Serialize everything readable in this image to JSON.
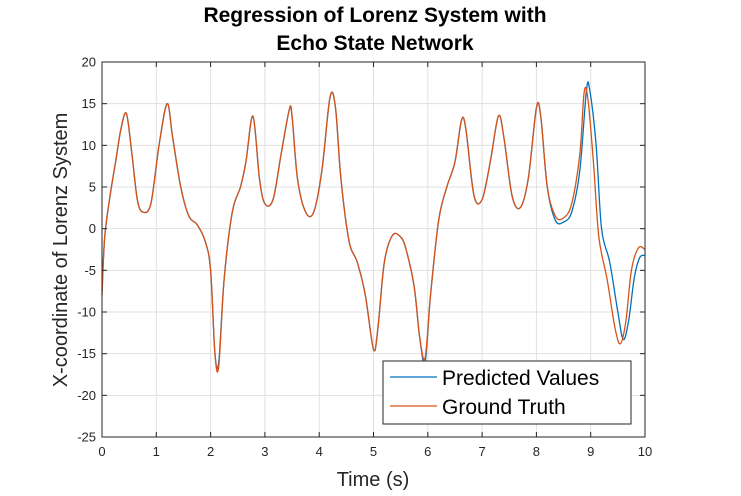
{
  "chart_data": {
    "type": "line",
    "title_lines": [
      "Regression of Lorenz System with",
      "Echo State Network"
    ],
    "xlabel": "Time (s)",
    "ylabel": "X-coordinate of Lorenz System",
    "xlim": [
      0,
      10
    ],
    "ylim": [
      -25,
      20
    ],
    "xticks": [
      0,
      1,
      2,
      3,
      4,
      5,
      6,
      7,
      8,
      9,
      10
    ],
    "yticks": [
      20,
      15,
      10,
      5,
      0,
      -5,
      -10,
      -15,
      -20,
      -25
    ],
    "grid": true,
    "legend_position": "bottom-right",
    "colors": {
      "predicted": "#0072BD",
      "ground": "#D95319"
    },
    "series": [
      {
        "name": "Predicted Values",
        "x": [
          0,
          0.05,
          0.15,
          0.25,
          0.35,
          0.45,
          0.55,
          0.65,
          0.75,
          0.9,
          1.05,
          1.2,
          1.3,
          1.45,
          1.6,
          1.75,
          1.9,
          2.0,
          2.08,
          2.15,
          2.25,
          2.4,
          2.55,
          2.65,
          2.78,
          2.9,
          3.0,
          3.15,
          3.3,
          3.45,
          3.5,
          3.6,
          3.75,
          3.9,
          4.05,
          4.2,
          4.3,
          4.4,
          4.55,
          4.7,
          4.85,
          5.0,
          5.08,
          5.2,
          5.35,
          5.5,
          5.6,
          5.75,
          5.85,
          5.95,
          6.05,
          6.2,
          6.35,
          6.5,
          6.62,
          6.7,
          6.85,
          7.0,
          7.15,
          7.3,
          7.4,
          7.55,
          7.7,
          7.85,
          8.0,
          8.08,
          8.2,
          8.35,
          8.5,
          8.65,
          8.8,
          8.92,
          8.98,
          9.1,
          9.2,
          9.35,
          9.5,
          9.6,
          9.7,
          9.8,
          9.9,
          10.0
        ],
        "y": [
          -7.5,
          -1,
          4,
          8,
          12,
          13.8,
          9,
          3.5,
          2,
          3,
          10,
          15,
          11,
          5,
          1.5,
          0.5,
          -1.5,
          -5,
          -15,
          -16,
          -6,
          2,
          5,
          8,
          13.5,
          6,
          3,
          3.5,
          9,
          14.3,
          13.5,
          6,
          2,
          2,
          7,
          15.8,
          14.5,
          6,
          -1.5,
          -4,
          -8,
          -14.5,
          -12,
          -4,
          -0.8,
          -1,
          -2.5,
          -7,
          -13,
          -16,
          -8,
          1,
          5,
          8,
          13,
          12,
          4,
          3.5,
          8,
          13.5,
          11,
          4,
          2.5,
          6,
          14.5,
          13.5,
          5,
          1,
          0.8,
          2,
          7,
          16.5,
          16.7,
          10,
          0,
          -4,
          -10,
          -13.3,
          -11,
          -6,
          -3.5,
          -3.2
        ]
      },
      {
        "name": "Ground Truth",
        "x": [
          0,
          0.05,
          0.15,
          0.25,
          0.35,
          0.45,
          0.55,
          0.65,
          0.75,
          0.9,
          1.05,
          1.2,
          1.3,
          1.45,
          1.6,
          1.75,
          1.9,
          2.0,
          2.08,
          2.15,
          2.25,
          2.4,
          2.55,
          2.65,
          2.78,
          2.9,
          3.0,
          3.15,
          3.3,
          3.45,
          3.5,
          3.6,
          3.75,
          3.9,
          4.05,
          4.2,
          4.3,
          4.4,
          4.55,
          4.7,
          4.85,
          5.0,
          5.08,
          5.2,
          5.35,
          5.5,
          5.6,
          5.75,
          5.85,
          5.95,
          6.05,
          6.2,
          6.35,
          6.5,
          6.62,
          6.7,
          6.85,
          7.0,
          7.15,
          7.3,
          7.4,
          7.55,
          7.7,
          7.85,
          8.0,
          8.08,
          8.2,
          8.35,
          8.5,
          8.65,
          8.8,
          8.88,
          8.95,
          9.05,
          9.15,
          9.3,
          9.45,
          9.55,
          9.65,
          9.75,
          9.88,
          10.0
        ],
        "y": [
          -8,
          -1,
          4,
          8,
          12,
          13.8,
          9,
          3.5,
          2,
          3,
          10,
          15,
          11,
          5,
          1.5,
          0.5,
          -1.5,
          -5,
          -15,
          -16.5,
          -6,
          2,
          5,
          8,
          13.5,
          6,
          3,
          3.5,
          9,
          14.3,
          13.5,
          6,
          2,
          2,
          7,
          15.8,
          14.5,
          6,
          -1.5,
          -4,
          -8,
          -14.5,
          -12,
          -4,
          -0.8,
          -1,
          -2.5,
          -7,
          -13,
          -15.5,
          -8,
          1,
          5,
          8,
          13,
          12,
          4,
          3.5,
          8,
          13.5,
          11,
          4,
          2.5,
          6,
          14.5,
          13.5,
          5,
          1.5,
          1.3,
          3,
          9,
          16.4,
          15.5,
          8,
          -1,
          -6,
          -12,
          -13.8,
          -11,
          -5,
          -2.3,
          -2.5
        ]
      }
    ]
  }
}
